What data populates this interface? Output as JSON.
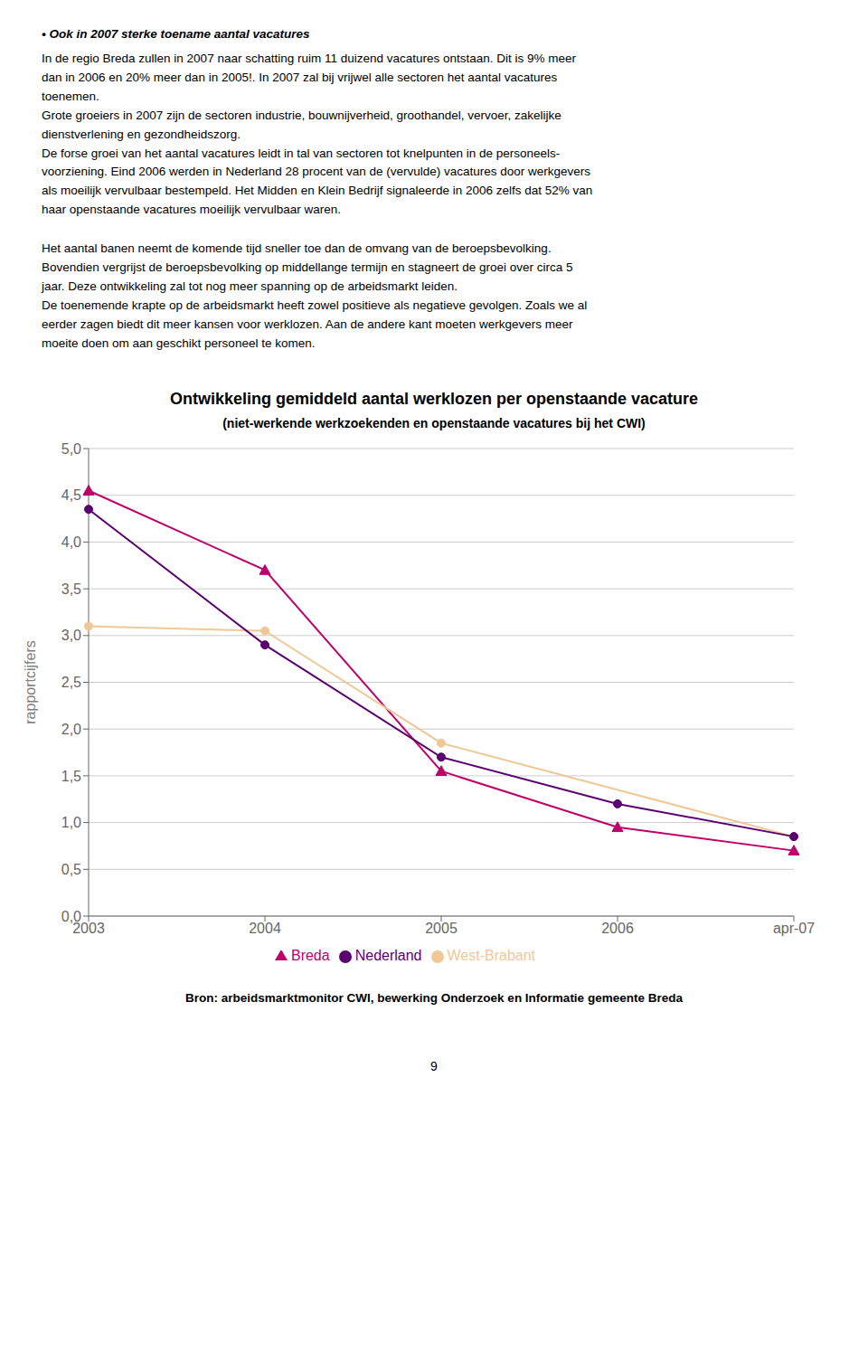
{
  "chart_data": {
    "type": "line",
    "title": "Ontwikkeling gemiddeld aantal werklozen per openstaande vacature",
    "subtitle": "(niet-werkende werkzoekenden en openstaande vacatures bij het CWI)",
    "y_label": "rapportcijfers",
    "categories": [
      "2003",
      "2004",
      "2005",
      "2006",
      "apr-07"
    ],
    "series": [
      {
        "name": "Breda",
        "color": "#C0006A",
        "marker": "triangle",
        "values": [
          4.55,
          3.7,
          1.55,
          0.95,
          0.7
        ]
      },
      {
        "name": "West-Brabant",
        "color": "#F0C896",
        "marker": "circle",
        "values": [
          3.1,
          3.05,
          1.85,
          null,
          0.85
        ]
      },
      {
        "name": "Nederland",
        "color": "#5B0070",
        "marker": "circle",
        "values": [
          4.35,
          2.9,
          1.7,
          1.2,
          0.85
        ]
      }
    ],
    "ylim": [
      0.0,
      5.0
    ],
    "yticks": [
      {
        "value": 0.0,
        "label": "0,0"
      },
      {
        "value": 0.5,
        "label": "0,5"
      },
      {
        "value": 1.0,
        "label": "1,0"
      },
      {
        "value": 1.5,
        "label": "1,5"
      },
      {
        "value": 2.0,
        "label": "2,0"
      },
      {
        "value": 2.5,
        "label": "2,5"
      },
      {
        "value": 3.0,
        "label": "3,0"
      },
      {
        "value": 3.5,
        "label": "3,5"
      },
      {
        "value": 4.0,
        "label": "4,0"
      },
      {
        "value": 4.5,
        "label": "4,5"
      },
      {
        "value": 5.0,
        "label": "5,0"
      }
    ],
    "grid": true,
    "legend": "bottom",
    "annotations": [
      "•  Ook in 2007 sterke toename aantal vacatures",
      "In de regio Breda zullen in 2007 naar schatting ruim 11 duizend vacatures ontstaan. Dit is 9% meer\ndan in 2006 en 20% meer dan in 2005!. In 2007 zal bij vrijwel alle sectoren het aantal vacatures\ntoenemen.\nGrote groeiers in 2007 zijn de sectoren industrie, bouwnijverheid, groothandel, vervoer, zakelijke\ndienstverlening en gezondheidszorg.\nDe forse groei van het aantal vacatures leidt in tal van sectoren tot knelpunten in de personeels-\nvoorziening. Eind 2006 werden in Nederland 28 procent van de (vervulde) vacatures door werkgevers\nals moeilijk vervulbaar bestempeld. Het Midden en Klein Bedrijf signaleerde in 2006 zelfs dat 52% van\nhaar openstaande vacatures moeilijk vervulbaar waren.",
      "Het aantal banen neemt de komende tijd sneller toe dan de omvang van de beroepsbevolking.\nBovendien vergrijst de beroepsbevolking op middellange termijn en stagneert de groei over circa 5\njaar. Deze ontwikkeling zal tot nog meer spanning op de arbeidsmarkt leiden.\nDe toenemende krapte op de arbeidsmarkt heeft zowel positieve als negatieve gevolgen. Zoals we al\neerder zagen biedt dit meer kansen voor werklozen. Aan de andere kant moeten werkgevers meer\nmoeite doen om aan geschikt personeel te komen.",
      "Bron: arbeidsmarktmonitor CWI, bewerking Onderzoek en Informatie gemeente Breda",
      "9"
    ]
  }
}
